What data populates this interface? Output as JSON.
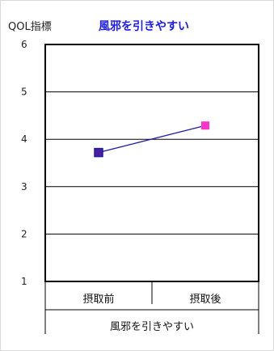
{
  "chart_data": {
    "type": "line",
    "title_prefix": "QOL指標",
    "title": "風邪を引きやすい",
    "categories": [
      "摂取前",
      "摂取後"
    ],
    "group_label": "風邪を引きやすい",
    "values": [
      3.72,
      4.29
    ],
    "ylim": [
      1,
      6
    ],
    "yticks": [
      1,
      2,
      3,
      4,
      5,
      6
    ],
    "grid": true,
    "legend": "none",
    "colors": {
      "line": "#1f1fa0",
      "marker_before": "#4b1fa0",
      "marker_after": "#ff33cc",
      "title": "#1a1aff"
    }
  }
}
